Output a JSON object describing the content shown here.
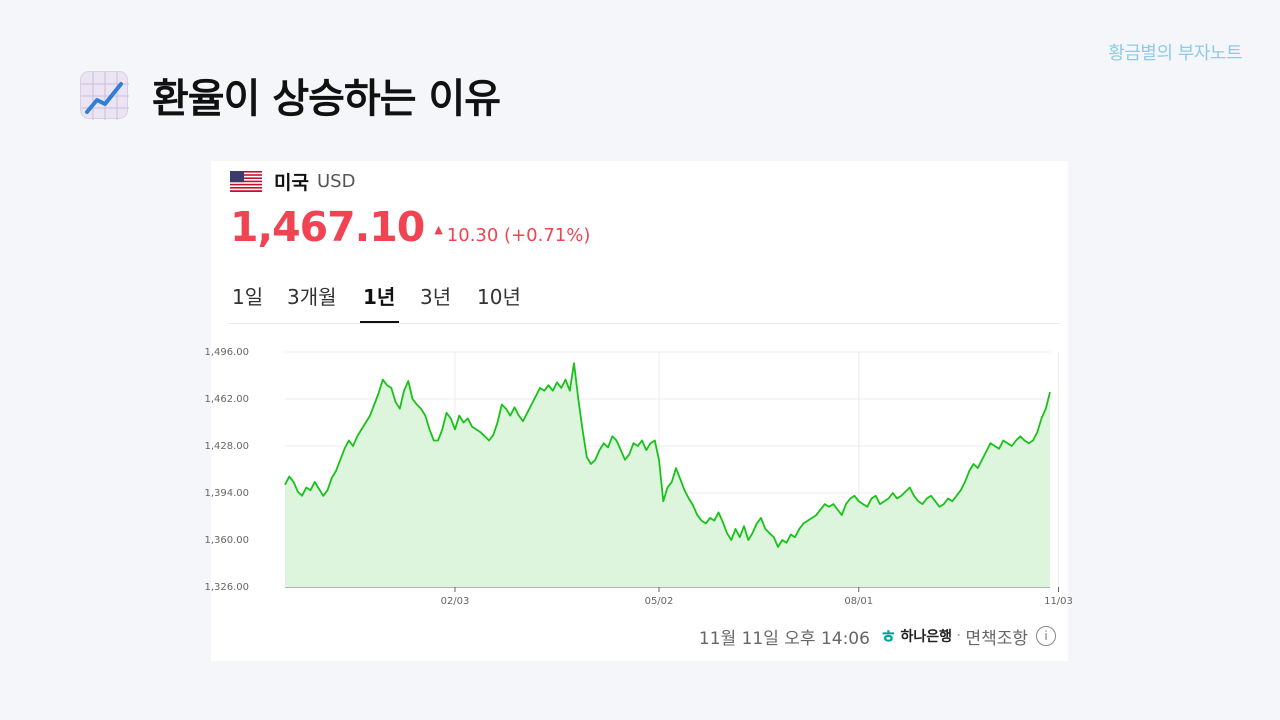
{
  "brand": "황금별의 부자노트",
  "page_title": "환율이 상승하는 이유",
  "title_icon": "chart-increasing-icon",
  "currency": {
    "country": "미국",
    "code": "USD",
    "price": "1,467.10",
    "change_direction": "up",
    "change": "10.30 (+0.71%)"
  },
  "tabs": [
    {
      "label": "1일",
      "active": false
    },
    {
      "label": "3개월",
      "active": false
    },
    {
      "label": "1년",
      "active": true
    },
    {
      "label": "3년",
      "active": false
    },
    {
      "label": "10년",
      "active": false
    }
  ],
  "footer": {
    "timestamp": "11월 11일 오후 14:06",
    "bank": "하나은행",
    "disclaimer": "면책조항"
  },
  "colors": {
    "up": "#f04452",
    "line": "#19c219",
    "fill": "#dcf5dc",
    "brand": "#8ecbe6"
  },
  "chart_data": {
    "type": "area",
    "ylim": [
      1326,
      1496
    ],
    "yticks": [
      "1,496.00",
      "1,462.00",
      "1,428.00",
      "1,394.00",
      "1,360.00",
      "1,326.00"
    ],
    "ytick_values": [
      1496,
      1462,
      1428,
      1394,
      1360,
      1326
    ],
    "xticks": [
      "02/03",
      "05/02",
      "08/01",
      "11/03"
    ],
    "xtick_index": [
      40,
      88,
      135,
      182
    ],
    "grid": true,
    "values": [
      1400,
      1406,
      1402,
      1395,
      1392,
      1398,
      1396,
      1402,
      1397,
      1392,
      1396,
      1405,
      1410,
      1418,
      1426,
      1432,
      1428,
      1435,
      1440,
      1445,
      1450,
      1458,
      1466,
      1476,
      1472,
      1470,
      1460,
      1455,
      1468,
      1475,
      1462,
      1458,
      1455,
      1450,
      1440,
      1432,
      1432,
      1440,
      1452,
      1448,
      1440,
      1450,
      1445,
      1448,
      1442,
      1440,
      1438,
      1435,
      1432,
      1436,
      1445,
      1458,
      1455,
      1450,
      1456,
      1450,
      1446,
      1452,
      1458,
      1464,
      1470,
      1468,
      1472,
      1468,
      1474,
      1470,
      1476,
      1468,
      1488,
      1462,
      1440,
      1420,
      1415,
      1418,
      1425,
      1430,
      1427,
      1435,
      1432,
      1425,
      1418,
      1422,
      1430,
      1428,
      1432,
      1425,
      1430,
      1432,
      1418,
      1388,
      1398,
      1402,
      1412,
      1404,
      1396,
      1390,
      1385,
      1378,
      1374,
      1372,
      1376,
      1374,
      1380,
      1373,
      1365,
      1360,
      1368,
      1362,
      1370,
      1360,
      1365,
      1372,
      1376,
      1368,
      1365,
      1362,
      1355,
      1360,
      1358,
      1364,
      1362,
      1368,
      1372,
      1374,
      1376,
      1378,
      1382,
      1386,
      1384,
      1386,
      1382,
      1378,
      1386,
      1390,
      1392,
      1388,
      1386,
      1384,
      1390,
      1392,
      1386,
      1388,
      1390,
      1394,
      1390,
      1392,
      1395,
      1398,
      1392,
      1388,
      1386,
      1390,
      1392,
      1388,
      1384,
      1386,
      1390,
      1388,
      1392,
      1396,
      1402,
      1410,
      1415,
      1412,
      1418,
      1424,
      1430,
      1428,
      1426,
      1432,
      1430,
      1428,
      1432,
      1435,
      1432,
      1430,
      1432,
      1438,
      1448,
      1455,
      1467
    ]
  }
}
